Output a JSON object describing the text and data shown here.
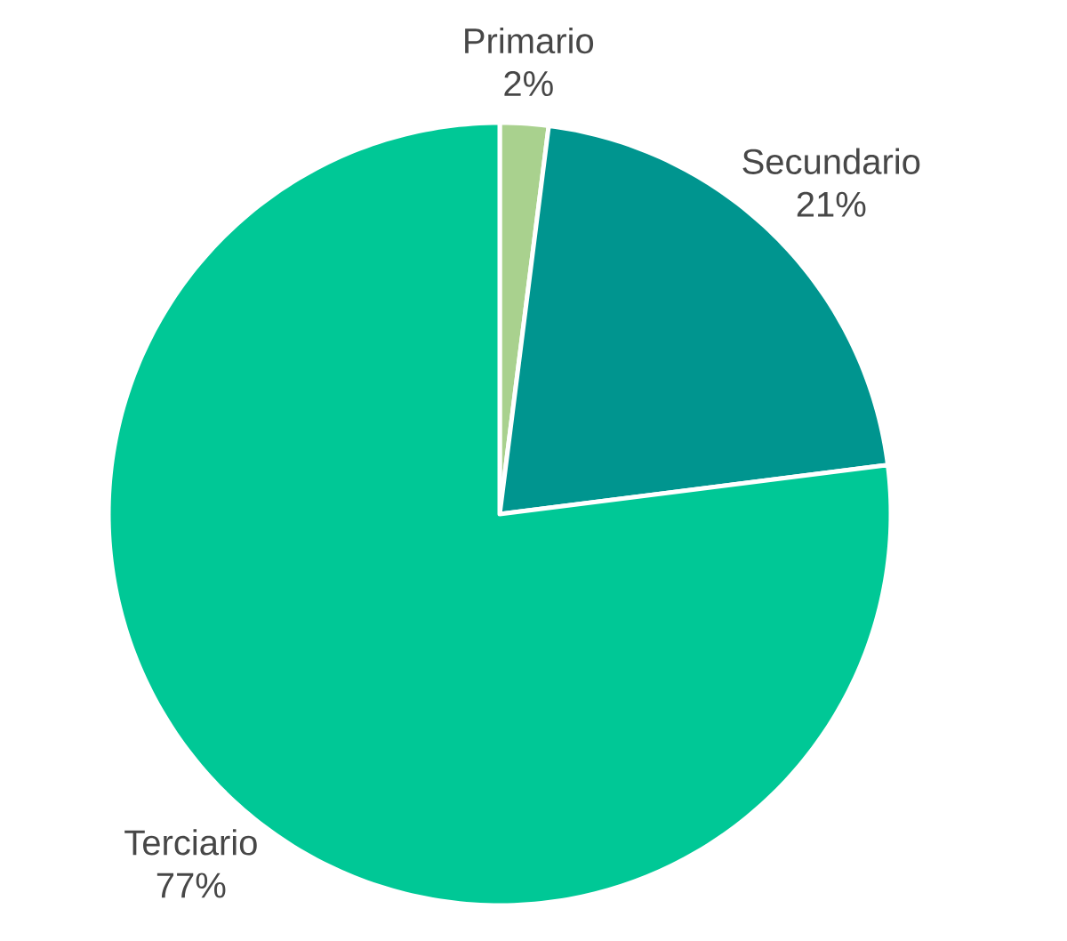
{
  "chart_data": {
    "type": "pie",
    "categories": [
      "Primario",
      "Secundario",
      "Terciario"
    ],
    "values": [
      2,
      21,
      77
    ],
    "colors": [
      "#a9d18e",
      "#00958f",
      "#00c896"
    ],
    "value_labels": [
      "2%",
      "21%",
      "77%"
    ]
  }
}
